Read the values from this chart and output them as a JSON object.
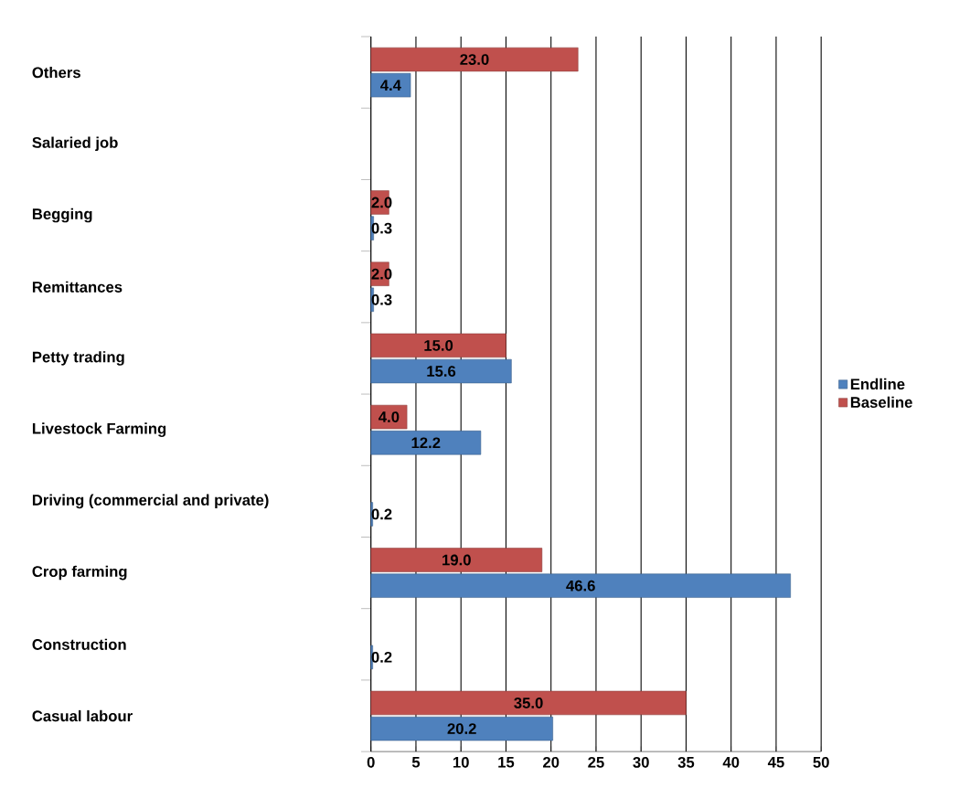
{
  "chart_data": {
    "type": "bar",
    "orientation": "horizontal",
    "categories": [
      "Others",
      "Salaried job",
      "Begging",
      "Remittances",
      "Petty trading",
      "Livestock Farming",
      "Driving (commercial and private)",
      "Crop farming",
      "Construction",
      "Casual labour"
    ],
    "series": [
      {
        "name": "Endline",
        "color": "#4f81bd",
        "values": [
          4.4,
          null,
          0.3,
          0.3,
          15.6,
          12.2,
          0.2,
          46.6,
          0.2,
          20.2
        ],
        "value_labels": [
          "4.4",
          null,
          "0.3",
          "0.3",
          "15.6",
          "12.2",
          "0.2",
          "46.6",
          "0.2",
          "20.2"
        ]
      },
      {
        "name": "Baseline",
        "color": "#c0504d",
        "values": [
          23.0,
          null,
          2.0,
          2.0,
          15.0,
          4.0,
          null,
          19.0,
          null,
          35.0
        ],
        "value_labels": [
          "23.0",
          null,
          "2.0",
          "2.0",
          "15.0",
          "4.0",
          null,
          "19.0",
          null,
          "35.0"
        ]
      }
    ],
    "xlim": [
      0,
      50
    ],
    "xticks": [
      0,
      5,
      10,
      15,
      20,
      25,
      30,
      35,
      40,
      45,
      50
    ],
    "grid": "x",
    "legend": "right"
  }
}
